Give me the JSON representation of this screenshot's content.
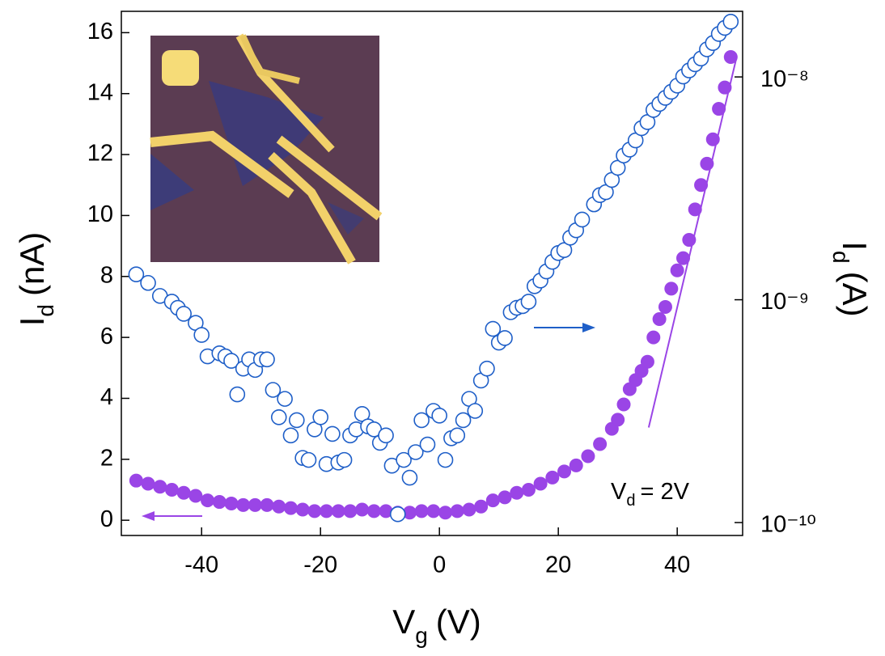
{
  "chart_data": {
    "type": "scatter",
    "x_label": {
      "symbol": "V",
      "subscript": "g",
      "unit": "(V)"
    },
    "y_label": {
      "symbol": "I",
      "subscript": "d",
      "unit": "(nA)"
    },
    "y2_label": {
      "symbol": "I",
      "subscript": "d",
      "unit": "(A)"
    },
    "annotation": {
      "symbol": "V",
      "subscript": "d",
      "text": "= 2V"
    },
    "xlim": [
      -53.5,
      51
    ],
    "xticks": [
      -40,
      -20,
      0,
      20,
      40
    ],
    "ylim": [
      -0.5,
      16.7
    ],
    "yticks": [
      0,
      2,
      4,
      6,
      8,
      10,
      12,
      14,
      16
    ],
    "y2lim": [
      8.75e-11,
      1.97e-08
    ],
    "y2_log": true,
    "y2ticks": [
      {
        "value": 1e-10,
        "label": "10⁻¹⁰"
      },
      {
        "value": 1e-09,
        "label": "10⁻⁹"
      },
      {
        "value": 1e-08,
        "label": "10⁻⁸"
      }
    ],
    "series": [
      {
        "color": "#9a45e6",
        "marker": "filled",
        "axis": "y",
        "x": [
          -51,
          -49,
          -47,
          -45,
          -43,
          -41,
          -39,
          -37,
          -35,
          -33,
          -31,
          -29,
          -27,
          -25,
          -23,
          -21,
          -19,
          -17,
          -15,
          -13,
          -11,
          -9,
          -7,
          -5,
          -3,
          -1,
          1,
          3,
          5,
          7,
          9,
          11,
          13,
          15,
          17,
          19,
          21,
          23,
          25,
          27,
          29,
          30,
          31,
          32,
          33,
          34,
          35,
          36,
          37,
          38,
          39,
          40,
          41,
          42,
          43,
          44,
          45,
          46,
          47,
          48,
          49
        ],
        "values": [
          1.3,
          1.2,
          1.1,
          1.0,
          0.9,
          0.8,
          0.65,
          0.6,
          0.55,
          0.5,
          0.5,
          0.5,
          0.45,
          0.4,
          0.35,
          0.3,
          0.3,
          0.3,
          0.3,
          0.35,
          0.3,
          0.3,
          0.25,
          0.25,
          0.3,
          0.3,
          0.25,
          0.3,
          0.35,
          0.45,
          0.65,
          0.75,
          0.9,
          1.0,
          1.2,
          1.4,
          1.6,
          1.8,
          2.1,
          2.5,
          3.0,
          3.3,
          3.8,
          4.3,
          4.6,
          4.9,
          5.2,
          6.0,
          6.6,
          7.0,
          7.6,
          8.2,
          8.6,
          9.2,
          10.2,
          11.0,
          11.7,
          12.5,
          13.5,
          14.2,
          15.2
        ]
      },
      {
        "color": "#1f5fc8",
        "marker": "open",
        "axis": "y2",
        "x": [
          -51,
          -49,
          -47,
          -45,
          -44,
          -43,
          -41,
          -40,
          -39,
          -37,
          -36,
          -35,
          -34,
          -33,
          -32,
          -31,
          -30,
          -29,
          -28,
          -27,
          -26,
          -25,
          -24,
          -23,
          -22,
          -21,
          -20,
          -19,
          -18,
          -17,
          -16,
          -15,
          -14,
          -13,
          -12,
          -11,
          -10,
          -9,
          -8,
          -7,
          -6,
          -5,
          -4,
          -3,
          -2,
          -1,
          0,
          1,
          2,
          3,
          4,
          5,
          6,
          7,
          8,
          9,
          10,
          11,
          12,
          13,
          14,
          15,
          16,
          17,
          18,
          19,
          20,
          21,
          22,
          23,
          24,
          26,
          27,
          28,
          29,
          30,
          31,
          32,
          33,
          34,
          35,
          36,
          37,
          38,
          39,
          40,
          41,
          42,
          43,
          44,
          45,
          46,
          47,
          48,
          49
        ],
        "values": [
          1.3e-09,
          1.19e-09,
          1.04e-09,
          9.8e-10,
          9.2e-10,
          8.65e-10,
          7.87e-10,
          6.95e-10,
          5.57e-10,
          5.75e-10,
          5.57e-10,
          5.32e-10,
          3.76e-10,
          4.91e-10,
          5.4e-10,
          4.84e-10,
          5.4e-10,
          5.4e-10,
          3.94e-10,
          2.97e-10,
          3.59e-10,
          2.46e-10,
          2.88e-10,
          1.95e-10,
          1.91e-10,
          2.62e-10,
          2.97e-10,
          1.83e-10,
          2.5e-10,
          1.86e-10,
          1.91e-10,
          2.46e-10,
          2.62e-10,
          3.07e-10,
          2.7e-10,
          2.62e-10,
          2.28e-10,
          2.46e-10,
          1.8e-10,
          1.09e-10,
          1.91e-10,
          1.59e-10,
          2.07e-10,
          2.88e-10,
          2.24e-10,
          3.17e-10,
          3.02e-10,
          1.91e-10,
          2.39e-10,
          2.46e-10,
          2.88e-10,
          3.59e-10,
          3.17e-10,
          4.34e-10,
          4.91e-10,
          7.4e-10,
          6.42e-10,
          6.73e-10,
          8.79e-10,
          9.2e-10,
          9.36e-10,
          9.8e-10,
          1.15e-09,
          1.22e-09,
          1.34e-09,
          1.48e-09,
          1.62e-09,
          1.67e-09,
          1.9e-09,
          2.05e-09,
          2.29e-09,
          2.68e-09,
          2.95e-09,
          3.04e-09,
          3.45e-09,
          3.91e-09,
          4.44e-09,
          4.72e-09,
          5.19e-09,
          5.89e-09,
          6.27e-09,
          7.11e-09,
          7.57e-09,
          8.06e-09,
          8.58e-09,
          9.14e-09,
          1.005e-08,
          1.07e-08,
          1.14e-08,
          1.21e-08,
          1.33e-08,
          1.42e-08,
          1.56e-08,
          1.66e-08,
          1.77e-08
        ]
      },
      {
        "color": "#9a45e6",
        "marker": "line",
        "axis": "y2",
        "x": [
          35.2,
          50
        ],
        "values": [
          2.67e-10,
          1.23e-08
        ]
      }
    ]
  }
}
